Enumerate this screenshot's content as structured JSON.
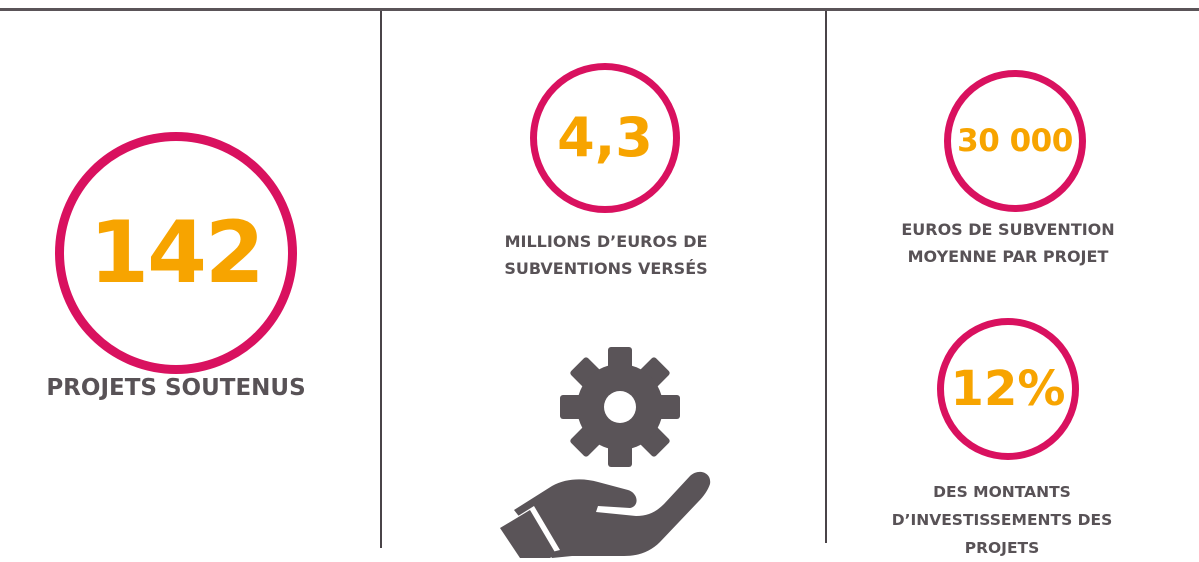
{
  "colors": {
    "ring": "#d9115f",
    "number": "#f7a400",
    "caption": "#585256",
    "divider": "#4a4448",
    "icon": "#5a5458"
  },
  "stats": {
    "projects": {
      "value": "142",
      "caption": "PROJETS SOUTENUS"
    },
    "subsidies": {
      "value": "4,3",
      "caption_line1": "MILLIONS D’EUROS DE",
      "caption_line2": "SUBVENTIONS VERSÉS"
    },
    "average": {
      "value": "30 000",
      "caption_line1": "EUROS DE SUBVENTION",
      "caption_line2": "MOYENNE PAR PROJET"
    },
    "share": {
      "value": "12%",
      "caption_line1": "DES MONTANTS",
      "caption_line2": "D’INVESTISSEMENTS DES",
      "caption_line3": "PROJETS"
    }
  },
  "icons": {
    "illustration": "gear-in-hand-icon"
  }
}
